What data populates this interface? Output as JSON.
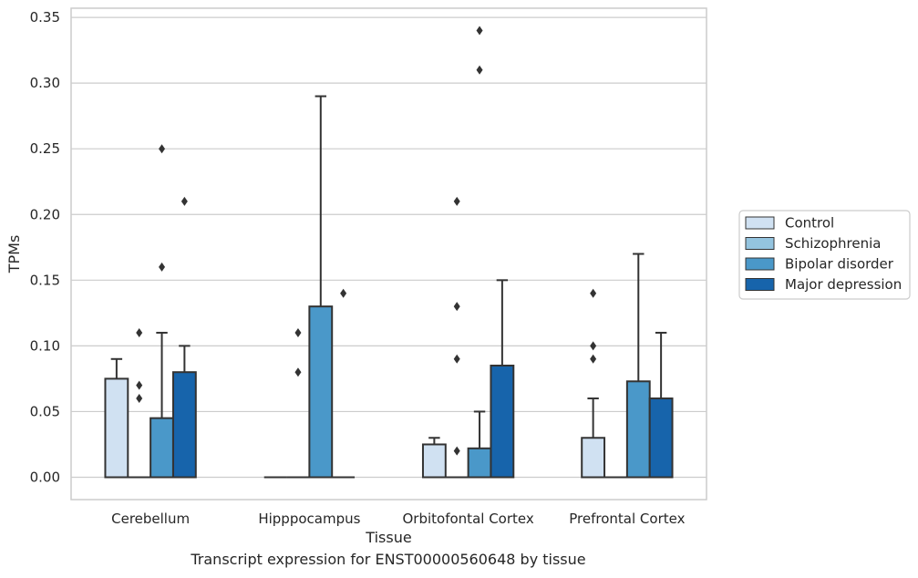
{
  "chart_data": {
    "type": "box",
    "xlabel": "Tissue",
    "ylabel": "TPMs",
    "ylim": [
      -0.017,
      0.357
    ],
    "yticks": [
      "0.00",
      "0.05",
      "0.10",
      "0.15",
      "0.20",
      "0.25",
      "0.30",
      "0.35"
    ],
    "ytick_values": [
      0,
      0.05,
      0.1,
      0.15,
      0.2,
      0.25,
      0.3,
      0.35
    ],
    "grid": "horizontal",
    "legend_position": "right",
    "categories": [
      "Cerebellum",
      "Hipppocampus",
      "Orbitofontal Cortex",
      "Prefrontal Cortex"
    ],
    "series": [
      {
        "name": "Control",
        "color": "#d0e1f2",
        "boxes": [
          {
            "q1": 0,
            "median": 0,
            "q3": 0.075,
            "whisker_low": 0,
            "whisker_high": 0.09,
            "outliers": []
          },
          {
            "q1": 0,
            "median": 0,
            "q3": 0,
            "whisker_low": 0,
            "whisker_high": 0,
            "outliers": []
          },
          {
            "q1": 0,
            "median": 0,
            "q3": 0.025,
            "whisker_low": 0,
            "whisker_high": 0.03,
            "outliers": []
          },
          {
            "q1": 0,
            "median": 0,
            "q3": 0.03,
            "whisker_low": 0,
            "whisker_high": 0.06,
            "outliers": [
              0.09,
              0.1,
              0.14
            ]
          }
        ]
      },
      {
        "name": "Schizophrenia",
        "color": "#94c4df",
        "boxes": [
          {
            "q1": 0,
            "median": 0,
            "q3": 0,
            "whisker_low": 0,
            "whisker_high": 0,
            "outliers": [
              0.06,
              0.07,
              0.11
            ]
          },
          {
            "q1": 0,
            "median": 0,
            "q3": 0,
            "whisker_low": 0,
            "whisker_high": 0,
            "outliers": [
              0.08,
              0.11
            ]
          },
          {
            "q1": 0,
            "median": 0,
            "q3": 0,
            "whisker_low": 0,
            "whisker_high": 0,
            "outliers": [
              0.02,
              0.09,
              0.13,
              0.21
            ]
          },
          {
            "q1": 0,
            "median": 0,
            "q3": 0,
            "whisker_low": 0,
            "whisker_high": 0,
            "outliers": []
          }
        ]
      },
      {
        "name": "Bipolar disorder",
        "color": "#4a98c9",
        "boxes": [
          {
            "q1": 0,
            "median": 0,
            "q3": 0.045,
            "whisker_low": 0,
            "whisker_high": 0.11,
            "outliers": [
              0.16,
              0.25
            ]
          },
          {
            "q1": 0,
            "median": 0,
            "q3": 0.13,
            "whisker_low": 0,
            "whisker_high": 0.29,
            "outliers": []
          },
          {
            "q1": 0,
            "median": 0,
            "q3": 0.022,
            "whisker_low": 0,
            "whisker_high": 0.05,
            "outliers": [
              0.31,
              0.34
            ]
          },
          {
            "q1": 0,
            "median": 0,
            "q3": 0.073,
            "whisker_low": 0,
            "whisker_high": 0.17,
            "outliers": []
          }
        ]
      },
      {
        "name": "Major depression",
        "color": "#1764ab",
        "boxes": [
          {
            "q1": 0,
            "median": 0,
            "q3": 0.08,
            "whisker_low": 0,
            "whisker_high": 0.1,
            "outliers": [
              0.21
            ]
          },
          {
            "q1": 0,
            "median": 0,
            "q3": 0,
            "whisker_low": 0,
            "whisker_high": 0,
            "outliers": [
              0.14
            ]
          },
          {
            "q1": 0,
            "median": 0,
            "q3": 0.085,
            "whisker_low": 0,
            "whisker_high": 0.15,
            "outliers": []
          },
          {
            "q1": 0,
            "median": 0,
            "q3": 0.06,
            "whisker_low": 0,
            "whisker_high": 0.11,
            "outliers": []
          }
        ]
      }
    ]
  },
  "caption": "Transcript expression for ENST00000560648 by tissue"
}
